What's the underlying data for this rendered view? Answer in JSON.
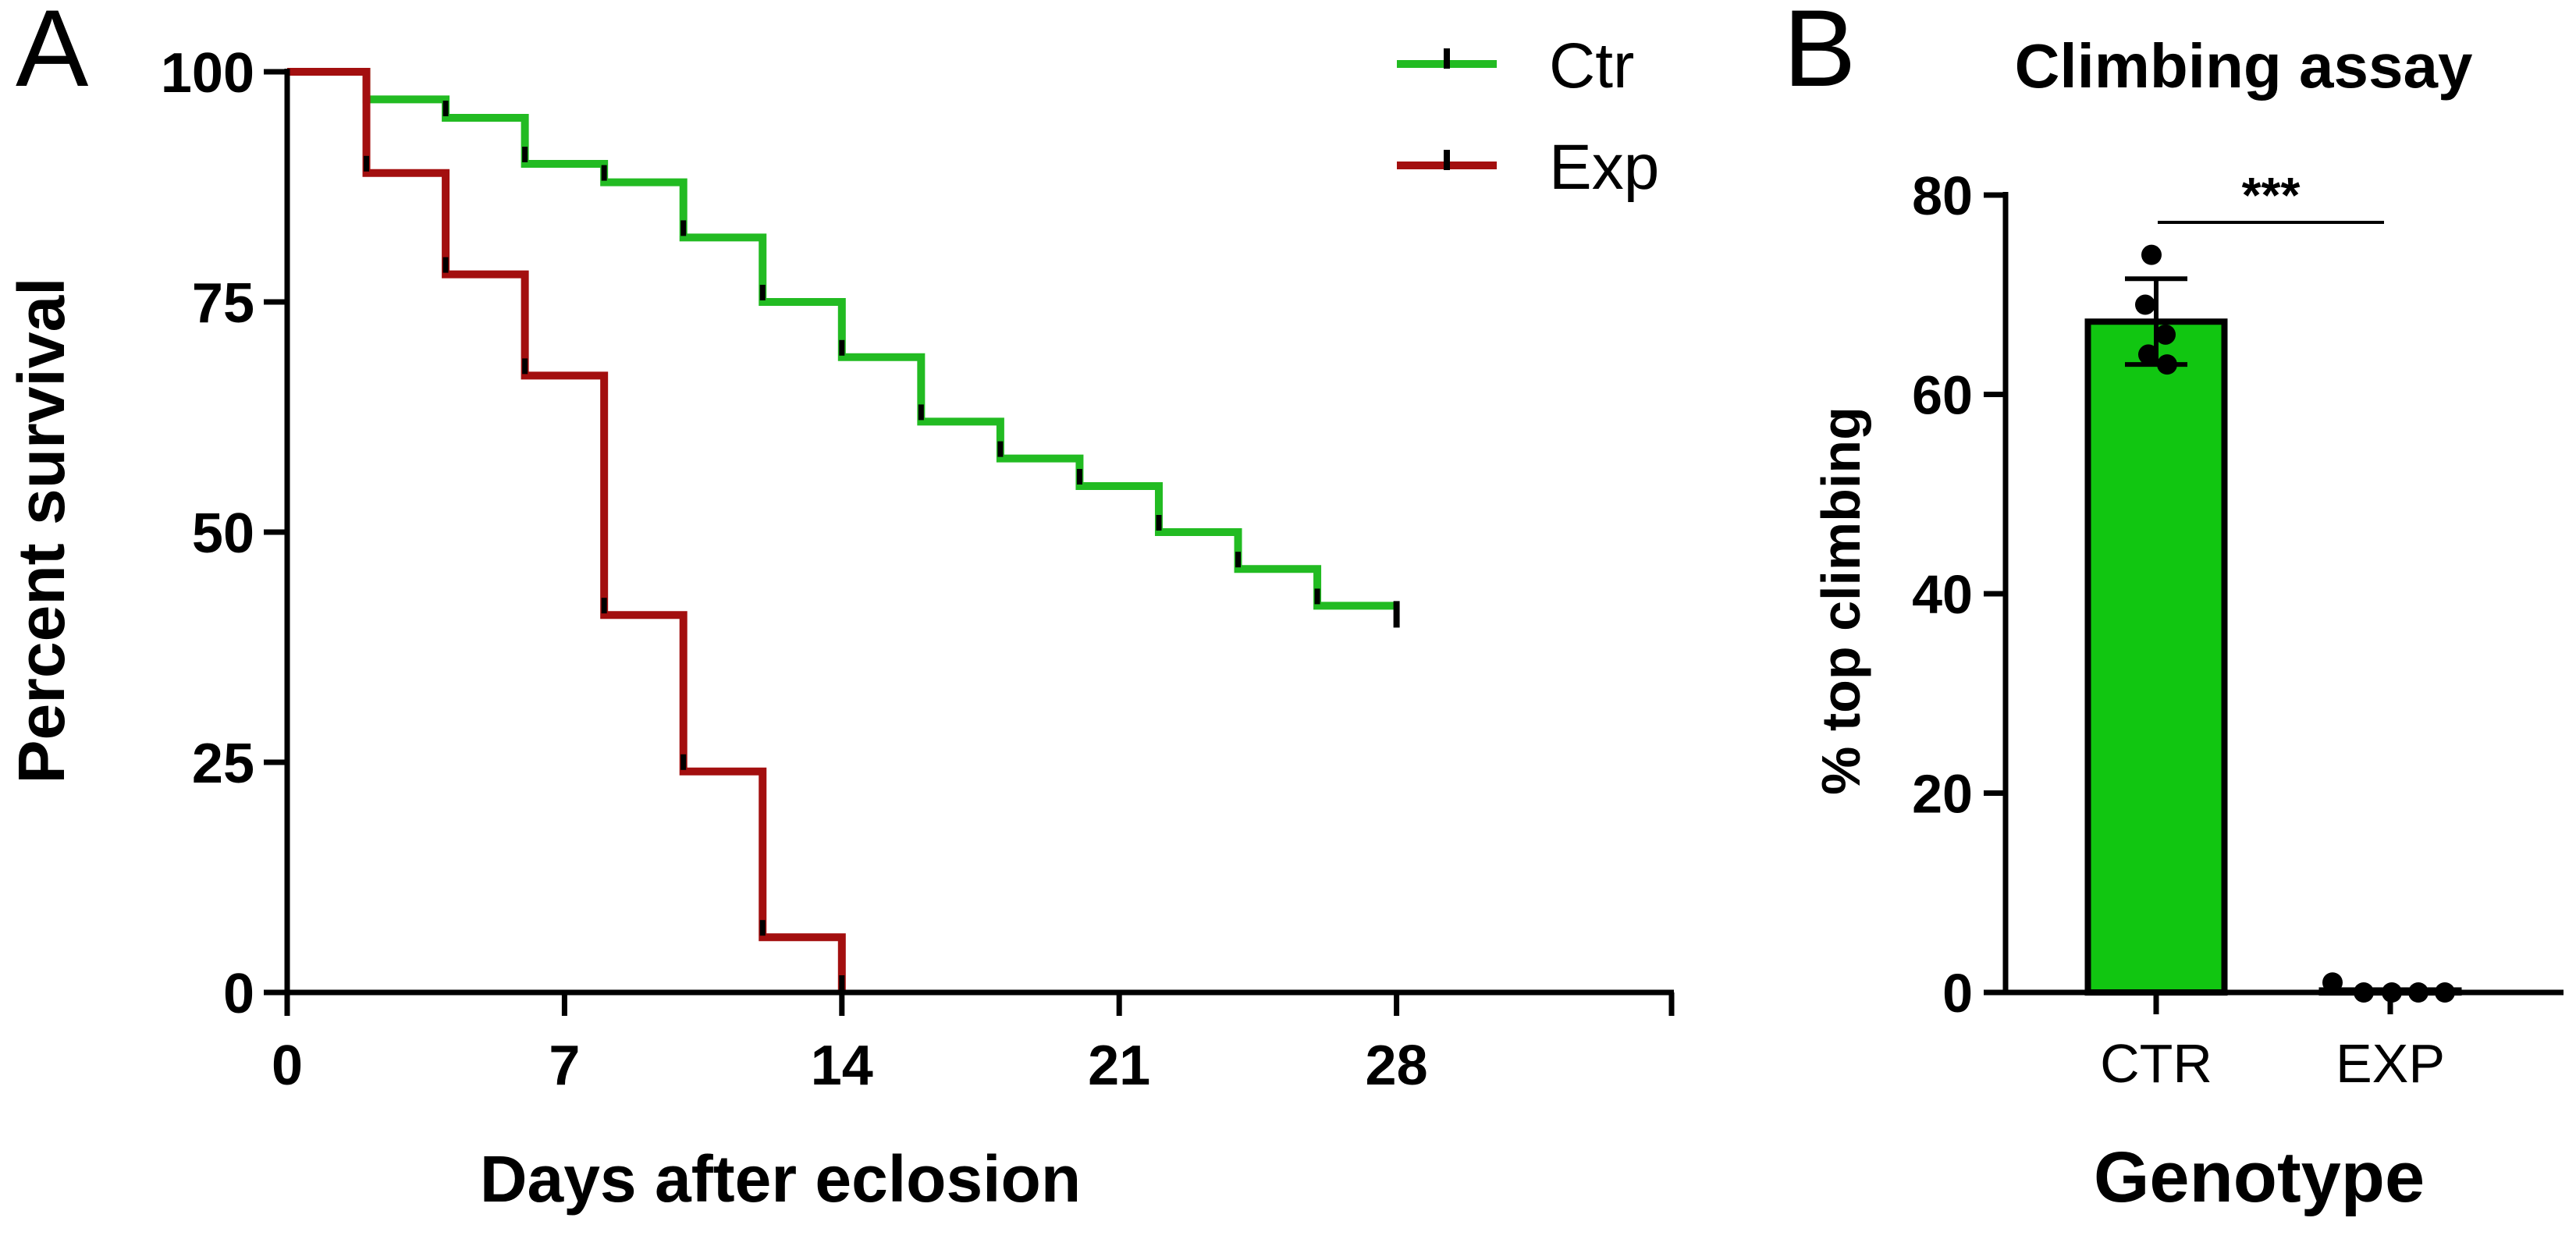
{
  "panels": {
    "a_letter": "A",
    "b_letter": "B"
  },
  "chart_data": [
    {
      "type": "line",
      "subtype": "kaplan-meier survival step",
      "title": "",
      "xlabel": "Days after eclosion",
      "ylabel": "Percent survival",
      "xlim": [
        0,
        35
      ],
      "ylim": [
        0,
        100
      ],
      "xticks": [
        0,
        7,
        14,
        21,
        28
      ],
      "yticks": [
        0,
        25,
        50,
        75,
        100
      ],
      "legend_position": "top-right",
      "series": [
        {
          "name": "Ctr",
          "color": "#22bb22",
          "steps": [
            [
              0,
              100
            ],
            [
              2,
              97
            ],
            [
              4,
              95
            ],
            [
              6,
              90
            ],
            [
              8,
              88
            ],
            [
              10,
              82
            ],
            [
              12,
              75
            ],
            [
              14,
              69
            ],
            [
              16,
              62
            ],
            [
              18,
              58
            ],
            [
              20,
              55
            ],
            [
              22,
              50
            ],
            [
              24,
              46
            ],
            [
              26,
              42
            ],
            [
              28,
              42
            ]
          ],
          "censor_x": [
            28
          ]
        },
        {
          "name": "Exp",
          "color": "#a30f0f",
          "steps": [
            [
              0,
              100
            ],
            [
              2,
              89
            ],
            [
              4,
              78
            ],
            [
              6,
              67
            ],
            [
              8,
              41
            ],
            [
              10,
              24
            ],
            [
              12,
              6
            ],
            [
              14,
              0
            ]
          ],
          "censor_x": []
        }
      ]
    },
    {
      "type": "bar",
      "title": "Climbing assay",
      "xlabel": "Genotype",
      "ylabel": "% top climbing",
      "ylim": [
        0,
        80
      ],
      "yticks": [
        0,
        20,
        40,
        60,
        80
      ],
      "categories": [
        "CTR",
        "EXP"
      ],
      "values": [
        67.3,
        0.2
      ],
      "errors": [
        4.3,
        0.4
      ],
      "points": [
        [
          74,
          69,
          66,
          64,
          63
        ],
        [
          1,
          0,
          0,
          0,
          0
        ]
      ],
      "bar_colors": [
        "#11c611",
        "#11c611"
      ],
      "significance": "***"
    }
  ]
}
